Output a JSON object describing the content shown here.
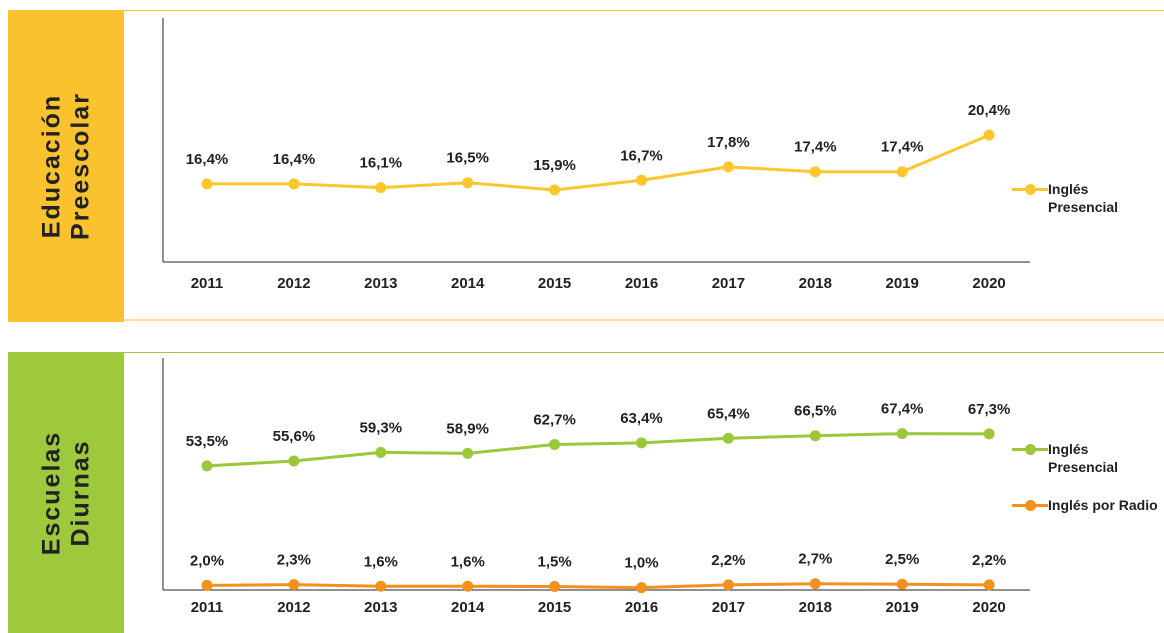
{
  "chart_data": [
    {
      "type": "line",
      "title": "Educación Preescolar",
      "panel_color": "#f9c22e",
      "categories": [
        "2011",
        "2012",
        "2013",
        "2014",
        "2015",
        "2016",
        "2017",
        "2018",
        "2019",
        "2020"
      ],
      "ylim": [
        10,
        30
      ],
      "series": [
        {
          "name": "Inglés Presencial",
          "color": "#fcc72c",
          "values": [
            16.4,
            16.4,
            16.1,
            16.5,
            15.9,
            16.7,
            17.8,
            17.4,
            17.4,
            20.4
          ],
          "value_labels": [
            "16,4%",
            "16,4%",
            "16,1%",
            "16,5%",
            "15,9%",
            "16,7%",
            "17,8%",
            "17,4%",
            "17,4%",
            "20,4%"
          ]
        }
      ]
    },
    {
      "type": "line",
      "title": "Escuelas Diurnas",
      "panel_color": "#9ec93c",
      "categories": [
        "2011",
        "2012",
        "2013",
        "2014",
        "2015",
        "2016",
        "2017",
        "2018",
        "2019",
        "2020"
      ],
      "ylim": [
        0,
        100
      ],
      "series": [
        {
          "name": "Inglés Presencial",
          "color": "#9bc83a",
          "values": [
            53.5,
            55.6,
            59.3,
            58.9,
            62.7,
            63.4,
            65.4,
            66.5,
            67.4,
            67.3
          ],
          "value_labels": [
            "53,5%",
            "55,6%",
            "59,3%",
            "58,9%",
            "62,7%",
            "63,4%",
            "65,4%",
            "66,5%",
            "67,4%",
            "67,3%"
          ]
        },
        {
          "name": "Inglés por Radio",
          "color": "#f4901e",
          "values": [
            2.0,
            2.3,
            1.6,
            1.6,
            1.5,
            1.0,
            2.2,
            2.7,
            2.5,
            2.2
          ],
          "value_labels": [
            "2,0%",
            "2,3%",
            "1,6%",
            "1,6%",
            "1,5%",
            "1,0%",
            "2,2%",
            "2,7%",
            "2,5%",
            "2,2%"
          ]
        }
      ]
    }
  ]
}
